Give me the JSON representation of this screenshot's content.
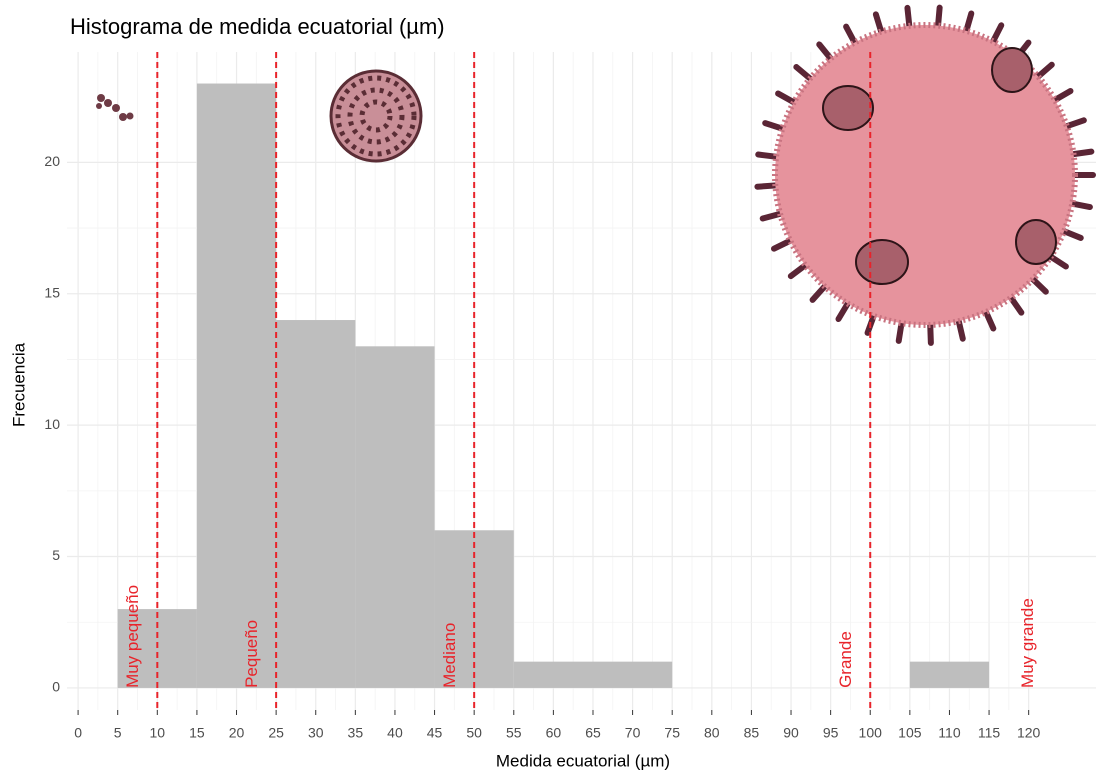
{
  "chart_data": {
    "type": "histogram",
    "title": "Histograma de medida ecuatorial (µm)",
    "xlabel": "Medida ecuatorial (µm)",
    "ylabel": "Frecuencia",
    "bins": [
      5,
      15,
      25,
      35,
      45,
      55,
      65,
      75,
      85,
      95,
      105,
      115
    ],
    "values": [
      3,
      23,
      14,
      13,
      6,
      1,
      1,
      0,
      0,
      0,
      1
    ],
    "color": "#bebebe",
    "xlim": [
      -1.4,
      128.5
    ],
    "ylim": [
      -0.84,
      24.2
    ],
    "xticks": [
      0,
      5,
      10,
      15,
      20,
      25,
      30,
      35,
      40,
      45,
      50,
      55,
      60,
      65,
      70,
      75,
      80,
      85,
      90,
      95,
      100,
      105,
      110,
      115,
      120
    ],
    "yticks": [
      0,
      5,
      10,
      15,
      20
    ],
    "grid": true,
    "vlines": {
      "values": [
        10,
        25,
        50,
        100
      ],
      "color": "#e8232a"
    },
    "annotations": [
      {
        "text": "Muy pequeño",
        "x": 7
      },
      {
        "text": "Pequeño",
        "x": 22
      },
      {
        "text": "Mediano",
        "x": 47
      },
      {
        "text": "Grande",
        "x": 97
      },
      {
        "text": "Muy grande",
        "x": 120
      }
    ]
  }
}
